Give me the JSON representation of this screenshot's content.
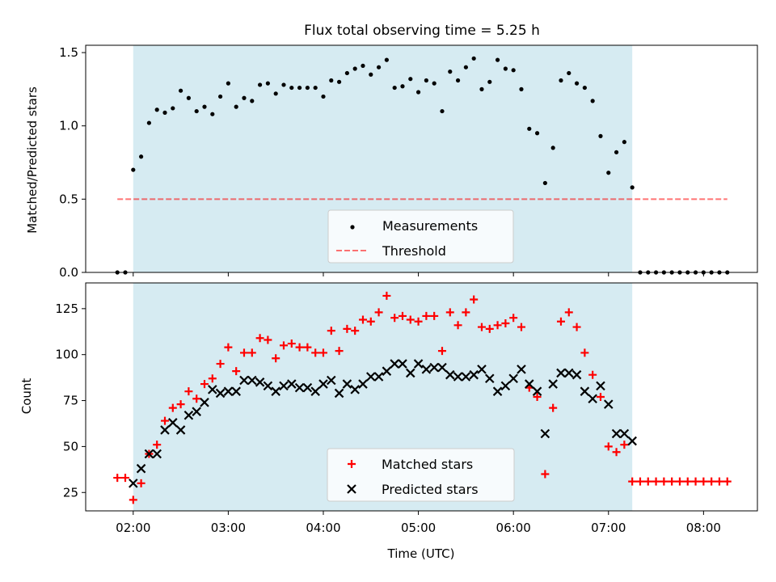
{
  "title": "Flux total observing time = 5.25 h",
  "colors": {
    "shade": "#add8e6",
    "threshold": "#ff0000",
    "matched": "#ff0000",
    "predicted": "#000000",
    "measurements": "#000000"
  },
  "chart_data": [
    {
      "type": "scatter",
      "ylabel": "Matched/Predicted stars",
      "xlim": [
        "01:30",
        "08:34"
      ],
      "ylim": [
        0,
        1.55
      ],
      "yticks": [
        0.0,
        0.5,
        1.0,
        1.5
      ],
      "ytick_labels": [
        "0.0",
        "0.5",
        "1.0",
        "1.5"
      ],
      "shaded_interval": [
        "02:00",
        "07:15"
      ],
      "legend": {
        "placement": "lower-center",
        "entries": [
          "Measurements",
          "Threshold"
        ]
      },
      "threshold": {
        "name": "Threshold",
        "value": 0.5,
        "x_range": [
          "01:50",
          "08:15"
        ],
        "style": "dashed"
      },
      "series": [
        {
          "name": "Measurements",
          "x": [
            "01:50",
            "01:55",
            "02:00",
            "02:05",
            "02:10",
            "02:15",
            "02:20",
            "02:25",
            "02:30",
            "02:35",
            "02:40",
            "02:45",
            "02:50",
            "02:55",
            "03:00",
            "03:05",
            "03:10",
            "03:15",
            "03:20",
            "03:25",
            "03:30",
            "03:35",
            "03:40",
            "03:45",
            "03:50",
            "03:55",
            "04:00",
            "04:05",
            "04:10",
            "04:15",
            "04:20",
            "04:25",
            "04:30",
            "04:35",
            "04:40",
            "04:45",
            "04:50",
            "04:55",
            "05:00",
            "05:05",
            "05:10",
            "05:15",
            "05:20",
            "05:25",
            "05:30",
            "05:35",
            "05:40",
            "05:45",
            "05:50",
            "05:55",
            "06:00",
            "06:05",
            "06:10",
            "06:15",
            "06:20",
            "06:25",
            "06:30",
            "06:35",
            "06:40",
            "06:45",
            "06:50",
            "06:55",
            "07:00",
            "07:05",
            "07:10",
            "07:15",
            "07:20",
            "07:25",
            "07:30",
            "07:35",
            "07:40",
            "07:45",
            "07:50",
            "07:55",
            "08:00",
            "08:05",
            "08:10",
            "08:15"
          ],
          "y": [
            0,
            0,
            0.7,
            0.79,
            1.02,
            1.11,
            1.09,
            1.12,
            1.24,
            1.19,
            1.1,
            1.13,
            1.08,
            1.2,
            1.29,
            1.13,
            1.19,
            1.17,
            1.28,
            1.29,
            1.22,
            1.28,
            1.26,
            1.26,
            1.26,
            1.26,
            1.2,
            1.31,
            1.3,
            1.36,
            1.39,
            1.41,
            1.35,
            1.4,
            1.45,
            1.26,
            1.27,
            1.32,
            1.23,
            1.31,
            1.29,
            1.1,
            1.37,
            1.31,
            1.4,
            1.46,
            1.25,
            1.3,
            1.45,
            1.39,
            1.38,
            1.25,
            0.98,
            0.95,
            0.61,
            0.85,
            1.31,
            1.36,
            1.29,
            1.26,
            1.17,
            0.93,
            0.68,
            0.82,
            0.89,
            0.58,
            0,
            0,
            0,
            0,
            0,
            0,
            0,
            0,
            0,
            0,
            0,
            0
          ]
        }
      ]
    },
    {
      "type": "scatter",
      "xlabel": "Time (UTC)",
      "ylabel": "Count",
      "xlim": [
        "01:30",
        "08:34"
      ],
      "ylim": [
        15,
        139
      ],
      "xticks": [
        "02:00",
        "03:00",
        "04:00",
        "05:00",
        "06:00",
        "07:00",
        "08:00"
      ],
      "yticks": [
        25,
        50,
        75,
        100,
        125
      ],
      "ytick_labels": [
        "25",
        "50",
        "75",
        "100",
        "125"
      ],
      "shaded_interval": [
        "02:00",
        "07:15"
      ],
      "legend": {
        "placement": "lower-center",
        "entries": [
          "Matched stars",
          "Predicted stars"
        ]
      },
      "series": [
        {
          "name": "Matched stars",
          "marker": "plus",
          "x": [
            "01:50",
            "01:55",
            "02:00",
            "02:05",
            "02:10",
            "02:15",
            "02:20",
            "02:25",
            "02:30",
            "02:35",
            "02:40",
            "02:45",
            "02:50",
            "02:55",
            "03:00",
            "03:05",
            "03:10",
            "03:15",
            "03:20",
            "03:25",
            "03:30",
            "03:35",
            "03:40",
            "03:45",
            "03:50",
            "03:55",
            "04:00",
            "04:05",
            "04:10",
            "04:15",
            "04:20",
            "04:25",
            "04:30",
            "04:35",
            "04:40",
            "04:45",
            "04:50",
            "04:55",
            "05:00",
            "05:05",
            "05:10",
            "05:15",
            "05:20",
            "05:25",
            "05:30",
            "05:35",
            "05:40",
            "05:45",
            "05:50",
            "05:55",
            "06:00",
            "06:05",
            "06:10",
            "06:15",
            "06:20",
            "06:25",
            "06:30",
            "06:35",
            "06:40",
            "06:45",
            "06:50",
            "06:55",
            "07:00",
            "07:05",
            "07:10",
            "07:15",
            "07:20",
            "07:25",
            "07:30",
            "07:35",
            "07:40",
            "07:45",
            "07:50",
            "07:55",
            "08:00",
            "08:05",
            "08:10",
            "08:15"
          ],
          "y": [
            33,
            33,
            21,
            30,
            46,
            51,
            64,
            71,
            73,
            80,
            76,
            84,
            87,
            95,
            104,
            91,
            101,
            101,
            109,
            108,
            98,
            105,
            106,
            104,
            104,
            101,
            101,
            113,
            102,
            114,
            113,
            119,
            118,
            123,
            132,
            120,
            121,
            119,
            118,
            121,
            121,
            102,
            123,
            116,
            123,
            130,
            115,
            114,
            116,
            117,
            120,
            115,
            82,
            77,
            35,
            71,
            118,
            123,
            115,
            101,
            89,
            77,
            50,
            47,
            51,
            31,
            31,
            31,
            31,
            31,
            31,
            31,
            31,
            31,
            31,
            31,
            31,
            31
          ]
        },
        {
          "name": "Predicted stars",
          "marker": "x",
          "x": [
            "02:00",
            "02:05",
            "02:10",
            "02:15",
            "02:20",
            "02:25",
            "02:30",
            "02:35",
            "02:40",
            "02:45",
            "02:50",
            "02:55",
            "03:00",
            "03:05",
            "03:10",
            "03:15",
            "03:20",
            "03:25",
            "03:30",
            "03:35",
            "03:40",
            "03:45",
            "03:50",
            "03:55",
            "04:00",
            "04:05",
            "04:10",
            "04:15",
            "04:20",
            "04:25",
            "04:30",
            "04:35",
            "04:40",
            "04:45",
            "04:50",
            "04:55",
            "05:00",
            "05:05",
            "05:10",
            "05:15",
            "05:20",
            "05:25",
            "05:30",
            "05:35",
            "05:40",
            "05:45",
            "05:50",
            "05:55",
            "06:00",
            "06:05",
            "06:10",
            "06:15",
            "06:20",
            "06:25",
            "06:30",
            "06:35",
            "06:40",
            "06:45",
            "06:50",
            "06:55",
            "07:00",
            "07:05",
            "07:10",
            "07:15"
          ],
          "y": [
            30,
            38,
            46,
            46,
            59,
            63,
            59,
            67,
            69,
            74,
            81,
            79,
            80,
            80,
            86,
            86,
            85,
            83,
            80,
            83,
            84,
            82,
            82,
            80,
            84,
            86,
            79,
            84,
            81,
            84,
            88,
            88,
            91,
            95,
            95,
            90,
            95,
            92,
            93,
            93,
            89,
            88,
            88,
            89,
            92,
            87,
            80,
            83,
            87,
            92,
            84,
            80,
            57,
            84,
            90,
            90,
            89,
            80,
            76,
            83,
            73,
            57,
            57,
            53
          ]
        }
      ]
    }
  ]
}
